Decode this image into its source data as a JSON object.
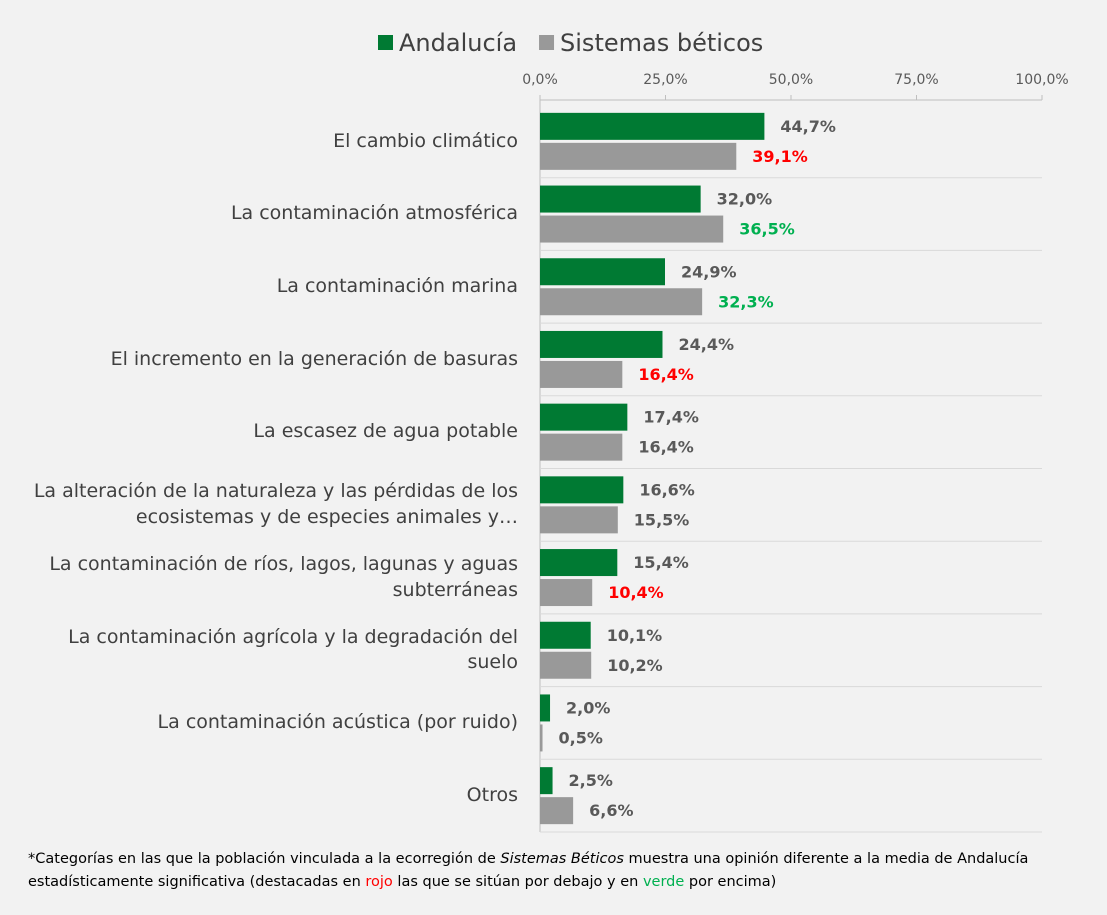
{
  "chart_data": {
    "type": "hbar",
    "categories": [
      "El cambio climático",
      "La contaminación atmosférica",
      "La contaminación marina",
      "El incremento en la generación de basuras",
      "La escasez de agua potable",
      "La alteración de la naturaleza y las pérdidas de los ecosistemas y de especies animales y…",
      "La contaminación de ríos, lagos, lagunas y aguas subterráneas",
      "La contaminación agrícola y la degradación del suelo",
      "La contaminación acústica (por ruido)",
      "Otros"
    ],
    "series": [
      {
        "name": "Andalucía",
        "color": "#007a33",
        "values": [
          44.7,
          32.0,
          24.9,
          24.4,
          17.4,
          16.6,
          15.4,
          10.1,
          2.0,
          2.5
        ],
        "value_labels": [
          "44,7%",
          "32,0%",
          "24,9%",
          "24,4%",
          "17,4%",
          "16,6%",
          "15,4%",
          "10,1%",
          "2,0%",
          "2,5%"
        ],
        "label_colors": [
          "#595959",
          "#595959",
          "#595959",
          "#595959",
          "#595959",
          "#595959",
          "#595959",
          "#595959",
          "#595959",
          "#595959"
        ]
      },
      {
        "name": "Sistemas béticos",
        "color": "#999999",
        "values": [
          39.1,
          36.5,
          32.3,
          16.4,
          16.4,
          15.5,
          10.4,
          10.2,
          0.5,
          6.6
        ],
        "value_labels": [
          "39,1%",
          "36,5%",
          "32,3%",
          "16,4%",
          "16,4%",
          "15,5%",
          "10,4%",
          "10,2%",
          "0,5%",
          "6,6%"
        ],
        "label_colors": [
          "#ff0000",
          "#00b050",
          "#00b050",
          "#ff0000",
          "#595959",
          "#595959",
          "#ff0000",
          "#595959",
          "#595959",
          "#595959"
        ]
      }
    ],
    "xlim": [
      0,
      100
    ],
    "xticks": [
      {
        "value": 0,
        "label": "0,0%"
      },
      {
        "value": 25,
        "label": "25,0%"
      },
      {
        "value": 50,
        "label": "50,0%"
      },
      {
        "value": 75,
        "label": "75,0%"
      },
      {
        "value": 100,
        "label": "100,0%"
      }
    ],
    "legend": "top",
    "footnote": [
      "*Categorías en las que la población vinculada a la ecorregión de ",
      "Sistemas Béticos",
      " muestra una opinión diferente a la media de Andalucía estadísticamente significativa (destacadas en ",
      "rojo",
      " las que se sitúan por debajo y en ",
      "verde",
      " por encima)"
    ]
  }
}
